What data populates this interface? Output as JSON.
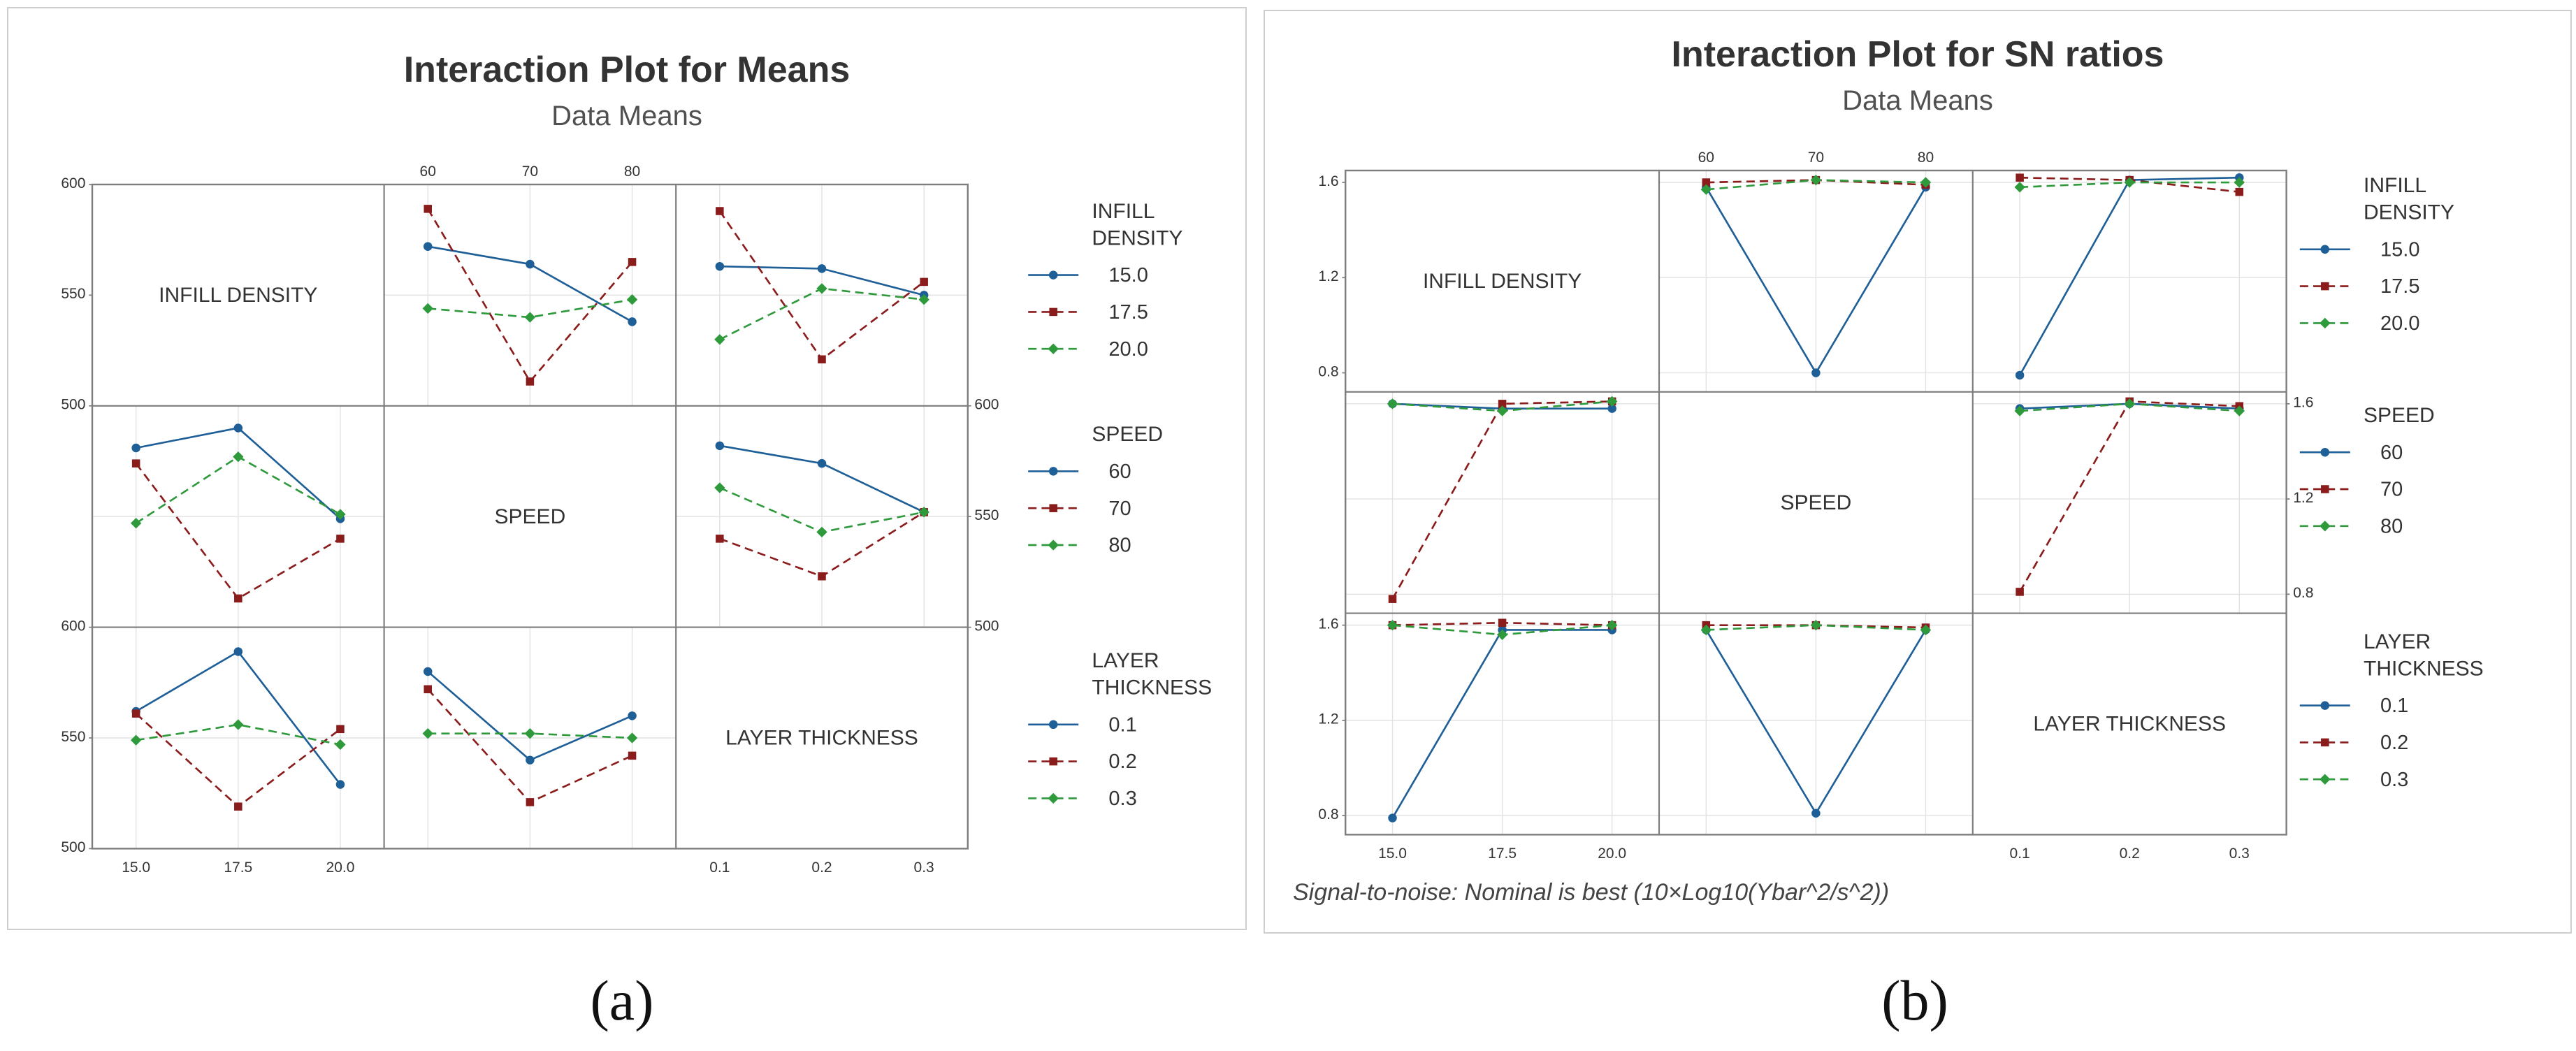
{
  "colors": {
    "series": [
      "#1f5f98",
      "#8b1c1c",
      "#2e9a3c"
    ],
    "grid": "#e3e3e3",
    "frame": "#7d7d7d"
  },
  "captions": [
    "(a)",
    "(b)"
  ],
  "chart_data": [
    {
      "type": "line",
      "title": "Interaction Plot for Means",
      "subtitle": "Data Means",
      "footnote": "",
      "factors": [
        {
          "name": "INFILL DENSITY",
          "legend_title": [
            "INFILL",
            "DENSITY"
          ],
          "levels": [
            "15.0",
            "17.5",
            "20.0"
          ]
        },
        {
          "name": "SPEED",
          "legend_title": [
            "SPEED"
          ],
          "levels": [
            "60",
            "70",
            "80"
          ]
        },
        {
          "name": "LAYER THICKNESS",
          "legend_title": [
            "LAYER",
            "THICKNESS"
          ],
          "levels": [
            "0.1",
            "0.2",
            "0.3"
          ]
        }
      ],
      "ylim": [
        500,
        600
      ],
      "yticks": [
        "500",
        "550",
        "600"
      ],
      "series_styles": [
        "solid",
        "dashed",
        "dashed"
      ],
      "markers": [
        "circle",
        "square",
        "diamond"
      ],
      "cells": [
        {
          "row": 0,
          "col": 1,
          "series": [
            [
              572,
              564,
              538
            ],
            [
              589,
              511,
              565
            ],
            [
              544,
              540,
              548
            ]
          ]
        },
        {
          "row": 0,
          "col": 2,
          "series": [
            [
              563,
              562,
              550
            ],
            [
              588,
              521,
              556
            ],
            [
              530,
              553,
              548
            ]
          ]
        },
        {
          "row": 1,
          "col": 0,
          "series": [
            [
              581,
              590,
              549
            ],
            [
              574,
              513,
              540
            ],
            [
              547,
              577,
              551
            ]
          ]
        },
        {
          "row": 1,
          "col": 2,
          "series": [
            [
              582,
              574,
              552
            ],
            [
              540,
              523,
              552
            ],
            [
              563,
              543,
              552
            ]
          ]
        },
        {
          "row": 2,
          "col": 0,
          "series": [
            [
              562,
              589,
              529
            ],
            [
              561,
              519,
              554
            ],
            [
              549,
              556,
              547
            ]
          ]
        },
        {
          "row": 2,
          "col": 1,
          "series": [
            [
              580,
              540,
              560
            ],
            [
              572,
              521,
              542
            ],
            [
              552,
              552,
              550
            ]
          ]
        }
      ]
    },
    {
      "type": "line",
      "title": "Interaction Plot for SN ratios",
      "subtitle": "Data Means",
      "footnote": "Signal-to-noise: Nominal is best (10×Log10(Ybar^2/s^2))",
      "factors": [
        {
          "name": "INFILL DENSITY",
          "legend_title": [
            "INFILL",
            "DENSITY"
          ],
          "levels": [
            "15.0",
            "17.5",
            "20.0"
          ]
        },
        {
          "name": "SPEED",
          "legend_title": [
            "SPEED"
          ],
          "levels": [
            "60",
            "70",
            "80"
          ]
        },
        {
          "name": "LAYER THICKNESS",
          "legend_title": [
            "LAYER",
            "THICKNESS"
          ],
          "levels": [
            "0.1",
            "0.2",
            "0.3"
          ]
        }
      ],
      "ylim": [
        0.72,
        1.65
      ],
      "yticks": [
        "0.8",
        "1.2",
        "1.6"
      ],
      "series_styles": [
        "solid",
        "dashed",
        "dashed"
      ],
      "markers": [
        "circle",
        "square",
        "diamond"
      ],
      "cells": [
        {
          "row": 0,
          "col": 1,
          "series": [
            [
              1.58,
              0.8,
              1.58
            ],
            [
              1.6,
              1.61,
              1.59
            ],
            [
              1.57,
              1.61,
              1.6
            ]
          ]
        },
        {
          "row": 0,
          "col": 2,
          "series": [
            [
              0.79,
              1.61,
              1.62
            ],
            [
              1.62,
              1.61,
              1.56
            ],
            [
              1.58,
              1.6,
              1.6
            ]
          ]
        },
        {
          "row": 1,
          "col": 0,
          "series": [
            [
              1.6,
              1.58,
              1.58
            ],
            [
              0.78,
              1.6,
              1.61
            ],
            [
              1.6,
              1.57,
              1.61
            ]
          ]
        },
        {
          "row": 1,
          "col": 2,
          "series": [
            [
              1.58,
              1.6,
              1.58
            ],
            [
              0.81,
              1.61,
              1.59
            ],
            [
              1.57,
              1.6,
              1.57
            ]
          ]
        },
        {
          "row": 2,
          "col": 0,
          "series": [
            [
              0.79,
              1.58,
              1.58
            ],
            [
              1.6,
              1.61,
              1.6
            ],
            [
              1.6,
              1.56,
              1.6
            ]
          ]
        },
        {
          "row": 2,
          "col": 1,
          "series": [
            [
              1.58,
              0.81,
              1.58
            ],
            [
              1.6,
              1.6,
              1.59
            ],
            [
              1.58,
              1.6,
              1.58
            ]
          ]
        }
      ]
    }
  ]
}
